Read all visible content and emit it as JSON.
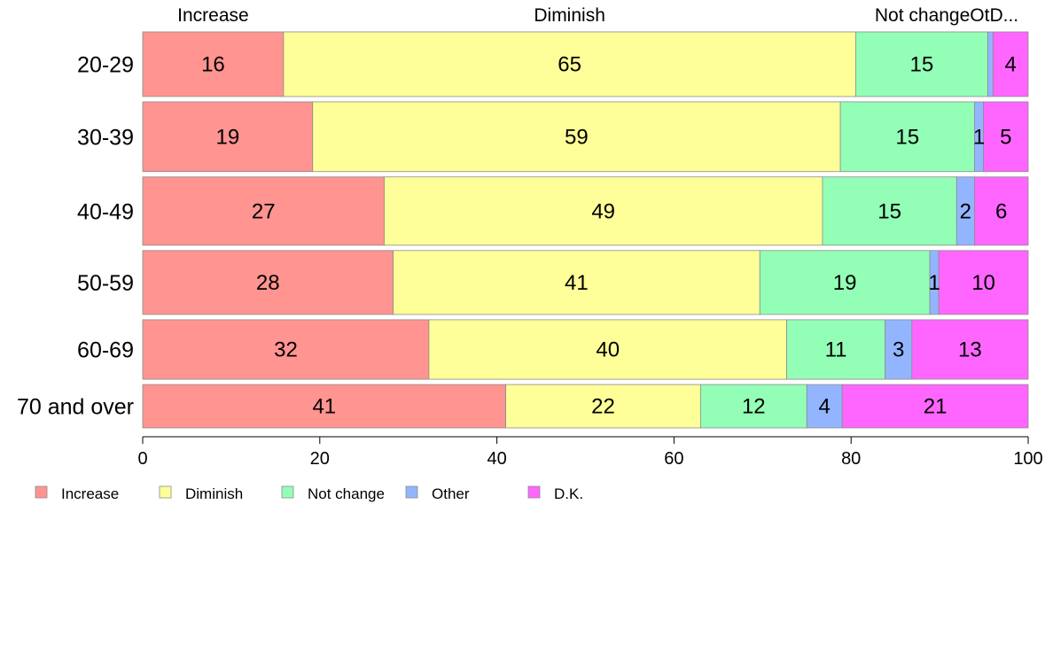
{
  "chart_data": {
    "type": "bar",
    "orientation": "horizontal",
    "stacked": true,
    "title": "",
    "xlabel": "",
    "ylabel": "",
    "xlim": [
      0,
      100
    ],
    "x_ticks": [
      0,
      20,
      40,
      60,
      80,
      100
    ],
    "grid": false,
    "legend_position": "bottom",
    "categories": [
      "20-29",
      "30-39",
      "40-49",
      "50-59",
      "60-69",
      "70 and over"
    ],
    "row_weights": [
      0.88,
      0.95,
      0.93,
      0.87,
      0.81,
      0.59
    ],
    "column_headers": [
      "Increase",
      "Diminish",
      "Not changeOtD..."
    ],
    "series": [
      {
        "name": "Increase",
        "color": "#ff9491",
        "values": [
          16,
          19,
          27,
          28,
          32,
          41
        ]
      },
      {
        "name": "Diminish",
        "color": "#ffff99",
        "values": [
          65,
          59,
          49,
          41,
          40,
          22
        ]
      },
      {
        "name": "Not change",
        "color": "#93ffb6",
        "values": [
          15,
          15,
          15,
          19,
          11,
          12
        ]
      },
      {
        "name": "Other",
        "color": "#93b5ff",
        "values": [
          0.6,
          1,
          2,
          1,
          3,
          4
        ]
      },
      {
        "name": "D.K.",
        "color": "#ff66ff",
        "values": [
          4,
          5,
          6,
          10,
          13,
          21
        ]
      }
    ],
    "data_labels": [
      [
        "16",
        "65",
        "15",
        "",
        "4"
      ],
      [
        "19",
        "59",
        "15",
        "1",
        "5"
      ],
      [
        "27",
        "49",
        "15",
        "2",
        "6"
      ],
      [
        "28",
        "41",
        "19",
        "1",
        "10"
      ],
      [
        "32",
        "40",
        "11",
        "3",
        "13"
      ],
      [
        "41",
        "22",
        "12",
        "4",
        "21"
      ]
    ]
  }
}
